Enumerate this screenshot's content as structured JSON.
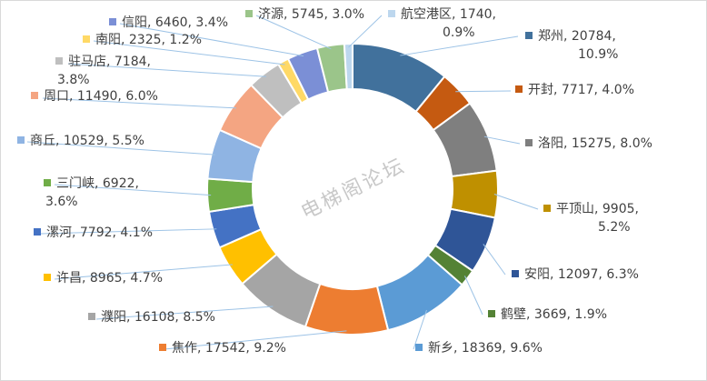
{
  "chart_data": {
    "type": "pie",
    "variant": "donut",
    "legend": "none",
    "watermark": "电梯阁论坛",
    "slices": [
      {
        "name": "郑州",
        "value": 20784,
        "percent": "10.9%",
        "color": "#41719C"
      },
      {
        "name": "开封",
        "value": 7717,
        "percent": "4.0%",
        "color": "#C55A11"
      },
      {
        "name": "洛阳",
        "value": 15275,
        "percent": "8.0%",
        "color": "#7F7F7F"
      },
      {
        "name": "平顶山",
        "value": 9905,
        "percent": "5.2%",
        "color": "#BF9000"
      },
      {
        "name": "安阳",
        "value": 12097,
        "percent": "6.3%",
        "color": "#2F5597"
      },
      {
        "name": "鹤壁",
        "value": 3669,
        "percent": "1.9%",
        "color": "#548235"
      },
      {
        "name": "新乡",
        "value": 18369,
        "percent": "9.6%",
        "color": "#5B9BD5"
      },
      {
        "name": "焦作",
        "value": 17542,
        "percent": "9.2%",
        "color": "#ED7D31"
      },
      {
        "name": "濮阳",
        "value": 16108,
        "percent": "8.5%",
        "color": "#A5A5A5"
      },
      {
        "name": "许昌",
        "value": 8965,
        "percent": "4.7%",
        "color": "#FFC000"
      },
      {
        "name": "漯河",
        "value": 7792,
        "percent": "4.1%",
        "color": "#4472C4"
      },
      {
        "name": "三门峡",
        "value": 6922,
        "percent": "3.6%",
        "color": "#70AD47"
      },
      {
        "name": "商丘",
        "value": 10529,
        "percent": "5.5%",
        "color": "#8FB4E3"
      },
      {
        "name": "周口",
        "value": 11490,
        "percent": "6.0%",
        "color": "#F4A582"
      },
      {
        "name": "驻马店",
        "value": 7184,
        "percent": "3.8%",
        "color": "#BFBFBF"
      },
      {
        "name": "南阳",
        "value": 2325,
        "percent": "1.2%",
        "color": "#FFD966"
      },
      {
        "name": "信阳",
        "value": 6460,
        "percent": "3.4%",
        "color": "#7B8FD6"
      },
      {
        "name": "济源",
        "value": 5745,
        "percent": "3.0%",
        "color": "#9BC58A"
      },
      {
        "name": "航空港区",
        "value": 1740,
        "percent": "0.9%",
        "color": "#BDD7EE"
      }
    ]
  }
}
